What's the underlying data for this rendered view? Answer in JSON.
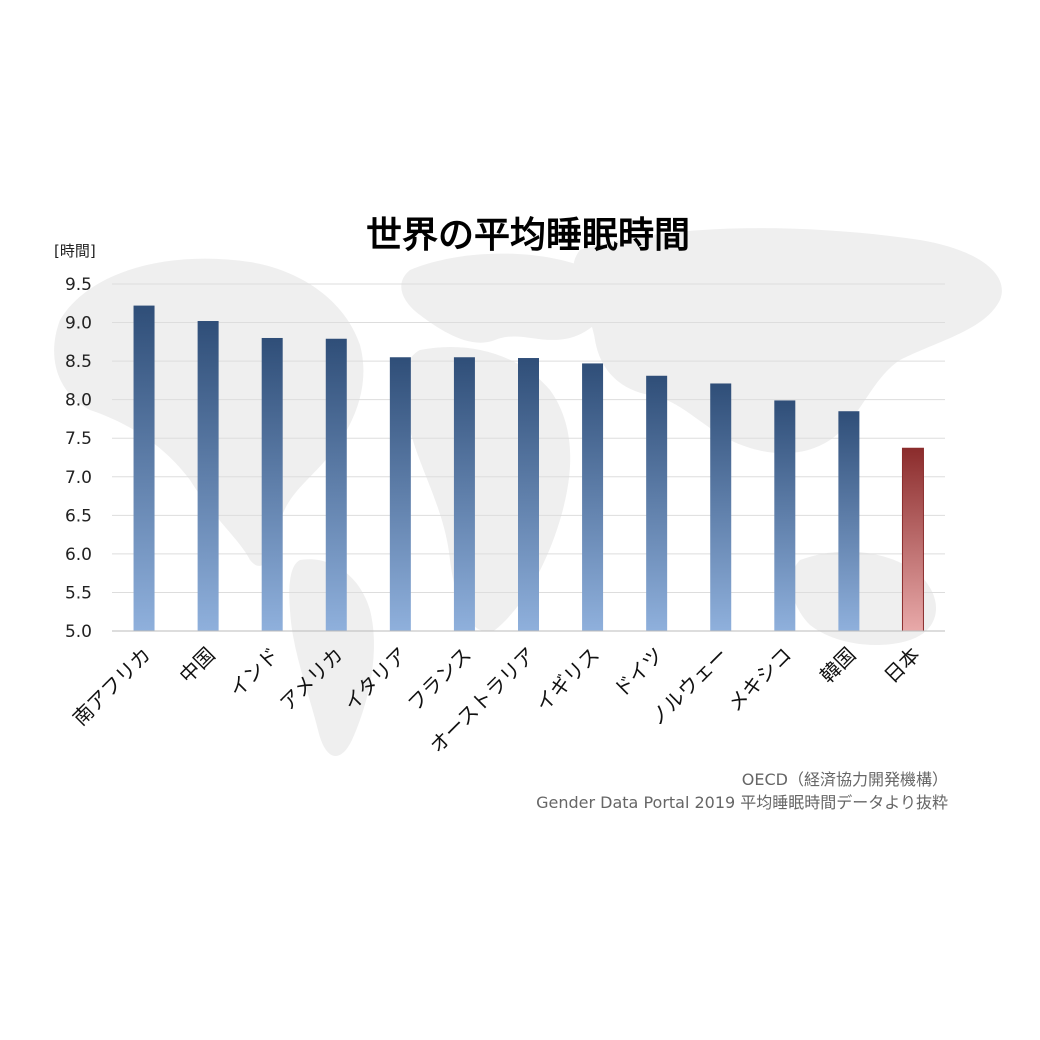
{
  "chart_data": {
    "type": "bar",
    "title": "世界の平均睡眠時間",
    "ylabel": "[時間]",
    "ylim": [
      5.0,
      9.5
    ],
    "yticks": [
      "9.5",
      "9.0",
      "8.5",
      "8.0",
      "7.5",
      "7.0",
      "6.5",
      "6.0",
      "5.5",
      "5.0"
    ],
    "categories": [
      "南アフリカ",
      "中国",
      "インド",
      "アメリカ",
      "イタリア",
      "フランス",
      "オーストラリア",
      "イギリス",
      "ドイツ",
      "ノルウェー",
      "メキシコ",
      "韓国",
      "日本"
    ],
    "values": [
      9.22,
      9.02,
      8.8,
      8.79,
      8.55,
      8.55,
      8.54,
      8.47,
      8.31,
      8.21,
      7.99,
      7.85,
      7.37
    ],
    "highlight_category": "日本",
    "colors": {
      "bar_top": "#2f4e78",
      "bar_bottom": "#8fb0dc",
      "highlight_top": "#8b2c2c",
      "highlight_bottom": "#e8a9a9",
      "background_map": "#efefef"
    },
    "grid": true,
    "source": [
      "OECD（経済協力開発機構）",
      "Gender Data Portal 2019 平均睡眠時間データより抜粋"
    ]
  }
}
